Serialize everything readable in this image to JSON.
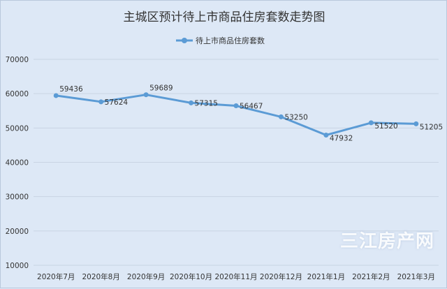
{
  "chart_data": {
    "type": "line",
    "title": "主城区预计待上市商品住房套数走势图",
    "categories": [
      "2020年7月",
      "2020年8月",
      "2020年9月",
      "2020年10月",
      "2020年11月",
      "2020年12月",
      "2021年1月",
      "2021年2月",
      "2021年3月"
    ],
    "series": [
      {
        "name": "待上市商品住房套数",
        "values": [
          59436,
          57624,
          59689,
          57315,
          56467,
          53250,
          47932,
          51520,
          51205
        ],
        "color": "#5b9bd5"
      }
    ],
    "ylim": [
      10000,
      70000
    ],
    "yticks": [
      10000,
      20000,
      30000,
      40000,
      50000,
      60000,
      70000
    ],
    "grid": true,
    "legend": "top-center",
    "data_labels": true
  },
  "watermark": "三江房产网"
}
